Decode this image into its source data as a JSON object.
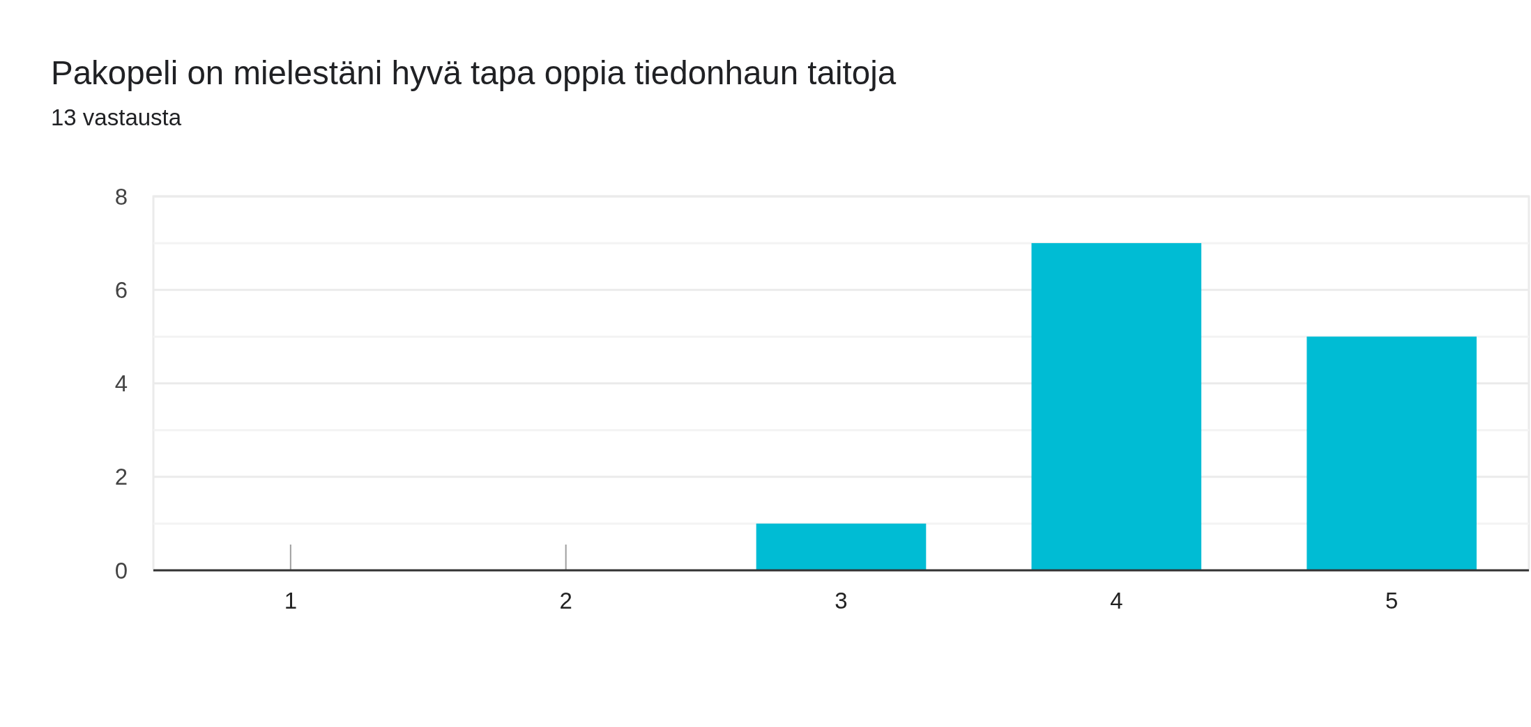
{
  "chart_data": {
    "type": "bar",
    "title": "Pakopeli on mielestäni hyvä tapa oppia tiedonhaun taitoja",
    "subtitle": "13 vastausta",
    "categories": [
      "1",
      "2",
      "3",
      "4",
      "5"
    ],
    "values": [
      0,
      0,
      1,
      7,
      5
    ],
    "color": "#00bcd4",
    "ylim": [
      0,
      8
    ],
    "yticks": [
      0,
      {
        "value": 1,
        "label": null
      },
      2,
      {
        "value": 3,
        "label": null
      },
      4,
      {
        "value": 5,
        "label": null
      },
      6,
      {
        "value": 7,
        "label": null
      },
      8
    ],
    "grid": true
  }
}
